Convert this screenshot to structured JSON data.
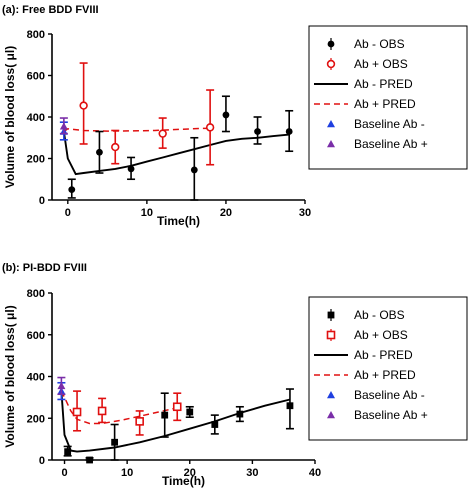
{
  "chart_data": [
    {
      "type": "line",
      "panel_label": "(a): Free BDD FVIII",
      "xlabel": "Time(h)",
      "ylabel": "Volume of blood loss( μl)",
      "xlim": [
        -2,
        30
      ],
      "ylim": [
        0,
        800
      ],
      "xticks": [
        0,
        10,
        20,
        30
      ],
      "yticks": [
        0,
        200,
        400,
        600,
        800
      ],
      "legend_position": "right",
      "series": [
        {
          "name": "Ab - OBS",
          "kind": "observed",
          "marker": "filled-circle",
          "color": "#000000",
          "points": [
            {
              "x": 0.5,
              "y": 50,
              "lo": 10,
              "hi": 100
            },
            {
              "x": 4,
              "y": 230,
              "lo": 130,
              "hi": 330
            },
            {
              "x": 8,
              "y": 150,
              "lo": 100,
              "hi": 205
            },
            {
              "x": 16,
              "y": 145,
              "lo": 0,
              "hi": 300
            },
            {
              "x": 20,
              "y": 410,
              "lo": 330,
              "hi": 500
            },
            {
              "x": 24,
              "y": 330,
              "lo": 270,
              "hi": 400
            },
            {
              "x": 28,
              "y": 330,
              "lo": 235,
              "hi": 430
            }
          ]
        },
        {
          "name": "Ab + OBS",
          "kind": "observed",
          "marker": "open-circle",
          "color": "#e01010",
          "points": [
            {
              "x": 2,
              "y": 455,
              "lo": 270,
              "hi": 660
            },
            {
              "x": 6,
              "y": 255,
              "lo": 175,
              "hi": 335
            },
            {
              "x": 12,
              "y": 320,
              "lo": 250,
              "hi": 395
            },
            {
              "x": 18,
              "y": 350,
              "lo": 170,
              "hi": 530
            }
          ]
        },
        {
          "name": "Ab - PRED",
          "kind": "predicted",
          "line": "solid",
          "color": "#000000",
          "x": [
            -0.5,
            0,
            1,
            2,
            4,
            6,
            8,
            10,
            12,
            14,
            16,
            18,
            20,
            22,
            24,
            26,
            28
          ],
          "y": [
            330,
            200,
            125,
            130,
            140,
            150,
            165,
            185,
            205,
            225,
            245,
            265,
            285,
            295,
            300,
            308,
            315
          ]
        },
        {
          "name": "Ab + PRED",
          "kind": "predicted",
          "line": "dashed",
          "color": "#e01010",
          "x": [
            -0.5,
            0,
            2,
            5,
            8,
            11,
            14,
            17,
            18
          ],
          "y": [
            330,
            343,
            335,
            332,
            333,
            335,
            340,
            345,
            345
          ]
        },
        {
          "name": "Baseline Ab -",
          "kind": "baseline",
          "marker": "triangle",
          "color": "#1f3fe0",
          "points": [
            {
              "x": -0.5,
              "y": 330,
              "lo": 290,
              "hi": 375
            }
          ]
        },
        {
          "name": "Baseline Ab +",
          "kind": "baseline",
          "marker": "triangle",
          "color": "#7a2ea8",
          "points": [
            {
              "x": -0.5,
              "y": 355,
              "lo": 320,
              "hi": 395
            }
          ]
        }
      ]
    },
    {
      "type": "line",
      "panel_label": "(b): PI-BDD FVIII",
      "xlabel": "Time(h)",
      "ylabel": "Volume of blood loss( μl)",
      "xlim": [
        -2,
        40
      ],
      "ylim": [
        0,
        800
      ],
      "xticks": [
        0,
        10,
        20,
        30,
        40
      ],
      "yticks": [
        0,
        200,
        400,
        600,
        800
      ],
      "legend_position": "right",
      "series": [
        {
          "name": "Ab - OBS",
          "kind": "observed",
          "marker": "filled-square",
          "color": "#000000",
          "points": [
            {
              "x": 0.5,
              "y": 40,
              "lo": 20,
              "hi": 65
            },
            {
              "x": 4,
              "y": 0,
              "lo": 0,
              "hi": 10
            },
            {
              "x": 8,
              "y": 85,
              "lo": 0,
              "hi": 170
            },
            {
              "x": 16,
              "y": 215,
              "lo": 110,
              "hi": 320
            },
            {
              "x": 20,
              "y": 230,
              "lo": 205,
              "hi": 255
            },
            {
              "x": 24,
              "y": 170,
              "lo": 125,
              "hi": 215
            },
            {
              "x": 28,
              "y": 220,
              "lo": 185,
              "hi": 255
            },
            {
              "x": 36,
              "y": 260,
              "lo": 150,
              "hi": 340
            }
          ]
        },
        {
          "name": "Ab + OBS",
          "kind": "observed",
          "marker": "open-square",
          "color": "#e01010",
          "points": [
            {
              "x": 2,
              "y": 230,
              "lo": 140,
              "hi": 330
            },
            {
              "x": 6,
              "y": 235,
              "lo": 180,
              "hi": 295
            },
            {
              "x": 12,
              "y": 185,
              "lo": 120,
              "hi": 235
            },
            {
              "x": 18,
              "y": 255,
              "lo": 190,
              "hi": 320
            }
          ]
        },
        {
          "name": "Ab - PRED",
          "kind": "predicted",
          "line": "solid",
          "color": "#000000",
          "x": [
            -0.5,
            0,
            1,
            2,
            4,
            8,
            12,
            16,
            20,
            24,
            28,
            32,
            36
          ],
          "y": [
            330,
            120,
            45,
            40,
            45,
            60,
            85,
            115,
            150,
            185,
            225,
            260,
            290
          ]
        },
        {
          "name": "Ab + PRED",
          "kind": "predicted",
          "line": "dashed",
          "color": "#e01010",
          "x": [
            -0.5,
            0,
            1,
            2,
            4,
            6,
            9,
            12,
            15,
            18
          ],
          "y": [
            330,
            300,
            235,
            195,
            175,
            175,
            190,
            210,
            230,
            250
          ]
        },
        {
          "name": "Baseline Ab -",
          "kind": "baseline",
          "marker": "triangle",
          "color": "#1f3fe0",
          "points": [
            {
              "x": -0.5,
              "y": 330,
              "lo": 290,
              "hi": 370
            }
          ]
        },
        {
          "name": "Baseline Ab +",
          "kind": "baseline",
          "marker": "triangle",
          "color": "#7a2ea8",
          "points": [
            {
              "x": -0.5,
              "y": 355,
              "lo": 315,
              "hi": 395
            }
          ]
        }
      ]
    }
  ]
}
